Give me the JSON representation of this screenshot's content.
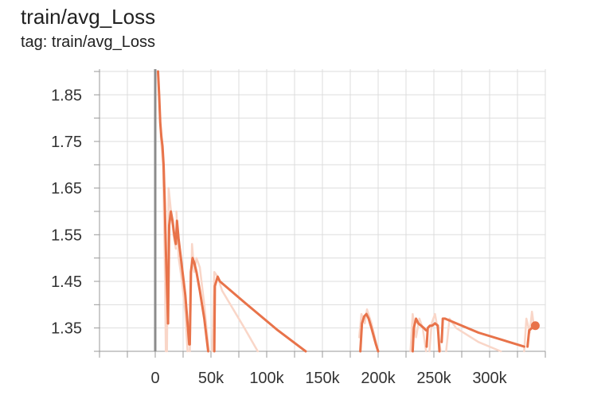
{
  "card": {
    "title": "train/avg_Loss",
    "tag_line": "tag: train/avg_Loss"
  },
  "colors": {
    "smoothed": "#e8734a",
    "raw": "#f9d6c8",
    "grid": "#dddddd",
    "axis": "#999999",
    "zero_line": "#8c8c8c"
  },
  "chart_data": {
    "type": "line",
    "title": "train/avg_Loss",
    "xlabel": "",
    "ylabel": "",
    "xlim": [
      -50000,
      350000
    ],
    "ylim": [
      1.3,
      1.905
    ],
    "grid": true,
    "x_ticks": [
      0,
      50000,
      100000,
      150000,
      200000,
      250000,
      300000
    ],
    "x_tick_labels": [
      "0",
      "50k",
      "100k",
      "150k",
      "200k",
      "250k",
      "300k"
    ],
    "y_ticks": [
      1.35,
      1.45,
      1.55,
      1.65,
      1.75,
      1.85
    ],
    "y_tick_labels": [
      "1.35",
      "1.45",
      "1.55",
      "1.65",
      "1.75",
      "1.85"
    ],
    "series": [
      {
        "style": "raw",
        "segments": [
          [
            [
              2500,
              1.9
            ],
            [
              5000,
              1.76
            ],
            [
              7000,
              1.7
            ],
            [
              8500,
              1.5
            ],
            [
              9500,
              1.3
            ]
          ],
          [
            [
              10500,
              1.3
            ],
            [
              12000,
              1.65
            ],
            [
              15000,
              1.58
            ],
            [
              17000,
              1.54
            ],
            [
              18500,
              1.52
            ]
          ],
          [
            [
              19000,
              1.6
            ],
            [
              21000,
              1.5
            ],
            [
              24000,
              1.45
            ],
            [
              27000,
              1.38
            ],
            [
              29000,
              1.3
            ]
          ],
          [
            [
              31000,
              1.3
            ],
            [
              33000,
              1.53
            ],
            [
              35000,
              1.47
            ],
            [
              37000,
              1.5
            ],
            [
              40000,
              1.48
            ],
            [
              44000,
              1.4
            ],
            [
              48000,
              1.3
            ]
          ],
          [
            [
              51000,
              1.3
            ],
            [
              53000,
              1.47
            ],
            [
              56000,
              1.46
            ],
            [
              60000,
              1.43
            ],
            [
              70000,
              1.39
            ],
            [
              80000,
              1.35
            ],
            [
              92000,
              1.3
            ]
          ],
          [
            [
              183000,
              1.33
            ],
            [
              185000,
              1.38
            ],
            [
              188000,
              1.36
            ],
            [
              190000,
              1.39
            ],
            [
              194000,
              1.36
            ],
            [
              200000,
              1.3
            ]
          ],
          [
            [
              229000,
              1.3
            ],
            [
              231000,
              1.38
            ],
            [
              234000,
              1.33
            ],
            [
              237000,
              1.37
            ],
            [
              240000,
              1.35
            ],
            [
              243000,
              1.3
            ]
          ],
          [
            [
              246000,
              1.3
            ],
            [
              248000,
              1.36
            ],
            [
              251000,
              1.38
            ],
            [
              254000,
              1.34
            ],
            [
              256000,
              1.3
            ]
          ],
          [
            [
              261000,
              1.3
            ],
            [
              264000,
              1.37
            ],
            [
              270000,
              1.35
            ],
            [
              290000,
              1.32
            ],
            [
              310000,
              1.3
            ]
          ],
          [
            [
              331000,
              1.3
            ],
            [
              333000,
              1.37
            ],
            [
              336000,
              1.34
            ],
            [
              338000,
              1.385
            ],
            [
              340000,
              1.35
            ]
          ]
        ]
      },
      {
        "style": "smoothed",
        "segments": [
          [
            [
              2500,
              1.9
            ],
            [
              3500,
              1.85
            ],
            [
              4500,
              1.79
            ],
            [
              5500,
              1.76
            ],
            [
              6500,
              1.74
            ],
            [
              7500,
              1.7
            ],
            [
              8500,
              1.62
            ],
            [
              9500,
              1.52
            ],
            [
              10500,
              1.44
            ],
            [
              11500,
              1.36
            ]
          ],
          [
            [
              11500,
              1.36
            ],
            [
              12500,
              1.57
            ],
            [
              14000,
              1.6
            ],
            [
              15500,
              1.58
            ],
            [
              17000,
              1.55
            ],
            [
              18500,
              1.53
            ],
            [
              19500,
              1.58
            ],
            [
              21000,
              1.54
            ],
            [
              23000,
              1.5
            ],
            [
              25000,
              1.46
            ],
            [
              27000,
              1.42
            ],
            [
              29000,
              1.36
            ],
            [
              30500,
              1.315
            ]
          ],
          [
            [
              31000,
              1.315
            ],
            [
              32000,
              1.47
            ],
            [
              33500,
              1.5
            ],
            [
              35000,
              1.49
            ],
            [
              37000,
              1.47
            ],
            [
              40000,
              1.43
            ],
            [
              44000,
              1.37
            ],
            [
              47500,
              1.3
            ]
          ],
          [
            [
              53000,
              1.3
            ],
            [
              53500,
              1.44
            ],
            [
              56000,
              1.46
            ],
            [
              58000,
              1.45
            ],
            [
              80000,
              1.405
            ],
            [
              110000,
              1.345
            ],
            [
              135000,
              1.3
            ]
          ],
          [
            [
              184000,
              1.3
            ],
            [
              185500,
              1.36
            ],
            [
              187500,
              1.375
            ],
            [
              189500,
              1.38
            ],
            [
              191500,
              1.37
            ],
            [
              194000,
              1.35
            ],
            [
              198000,
              1.315
            ],
            [
              200000,
              1.3
            ]
          ],
          [
            [
              231000,
              1.3
            ],
            [
              232000,
              1.35
            ],
            [
              234000,
              1.37
            ],
            [
              236000,
              1.36
            ],
            [
              238500,
              1.355
            ],
            [
              241000,
              1.35
            ],
            [
              243000,
              1.345
            ]
          ],
          [
            [
              243500,
              1.31
            ],
            [
              244500,
              1.35
            ],
            [
              246500,
              1.355
            ],
            [
              248500,
              1.355
            ],
            [
              251000,
              1.36
            ],
            [
              253500,
              1.355
            ],
            [
              255000,
              1.3
            ]
          ],
          [
            [
              257000,
              1.32
            ],
            [
              258000,
              1.37
            ],
            [
              260000,
              1.37
            ],
            [
              290000,
              1.34
            ],
            [
              331000,
              1.31
            ]
          ],
          [
            [
              334000,
              1.31
            ],
            [
              335500,
              1.345
            ],
            [
              338000,
              1.35
            ],
            [
              341000,
              1.355
            ]
          ]
        ],
        "end_point": [
          341000,
          1.355
        ]
      }
    ]
  }
}
